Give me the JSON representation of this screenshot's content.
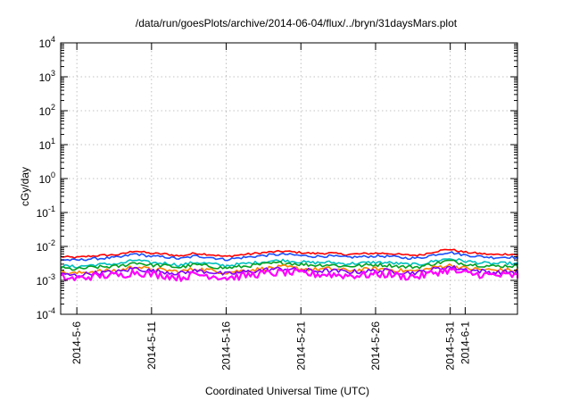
{
  "chart_data": {
    "type": "line",
    "title": "/data/run/goesPlots/archive/2014-06-04/flux/../bryn/31daysMars.plot",
    "xlabel": "Coordinated Universal Time (UTC)",
    "ylabel": "cGy/day",
    "y_scale": "log",
    "ylim": [
      0.0001,
      10000
    ],
    "xlim": [
      "2014-05-04T22:00",
      "2014-06-04T12:00"
    ],
    "grid": true,
    "y_ticks": [
      {
        "value": 0.0001,
        "base": "10",
        "exp": "-4"
      },
      {
        "value": 0.001,
        "base": "10",
        "exp": "-3"
      },
      {
        "value": 0.01,
        "base": "10",
        "exp": "-2"
      },
      {
        "value": 0.1,
        "base": "10",
        "exp": "-1"
      },
      {
        "value": 1,
        "base": "10",
        "exp": "0"
      },
      {
        "value": 10,
        "base": "10",
        "exp": "1"
      },
      {
        "value": 100,
        "base": "10",
        "exp": "2"
      },
      {
        "value": 1000,
        "base": "10",
        "exp": "3"
      },
      {
        "value": 10000,
        "base": "10",
        "exp": "4"
      }
    ],
    "x_ticks": [
      {
        "date": "2014-05-06",
        "label": "2014-5-6"
      },
      {
        "date": "2014-05-11",
        "label": "2014-5-11"
      },
      {
        "date": "2014-05-16",
        "label": "2014-5-16"
      },
      {
        "date": "2014-05-21",
        "label": "2014-5-21"
      },
      {
        "date": "2014-05-26",
        "label": "2014-5-26"
      },
      {
        "date": "2014-05-31",
        "label": "2014-5-31"
      },
      {
        "date": "2014-06-01",
        "label": "2014-6-1"
      }
    ],
    "series": [
      {
        "color": "#ff0000",
        "values": [
          0.005,
          0.0047,
          0.0052,
          0.0055,
          0.0058,
          0.0075,
          0.0062,
          0.006,
          0.0052,
          0.0063,
          0.0058,
          0.005,
          0.0056,
          0.0062,
          0.0068,
          0.0072,
          0.0066,
          0.0062,
          0.0064,
          0.0058,
          0.006,
          0.0063,
          0.0062,
          0.0056,
          0.0055,
          0.007,
          0.0083,
          0.0068,
          0.0062,
          0.0057,
          0.006,
          0.0055
        ]
      },
      {
        "color": "#1a4dff",
        "values": [
          0.0041,
          0.0039,
          0.0043,
          0.0045,
          0.0048,
          0.0061,
          0.0051,
          0.0049,
          0.0043,
          0.0052,
          0.0048,
          0.0041,
          0.0046,
          0.0051,
          0.0056,
          0.0059,
          0.0054,
          0.0051,
          0.0052,
          0.0048,
          0.0049,
          0.0052,
          0.0051,
          0.0046,
          0.0045,
          0.0057,
          0.0068,
          0.0056,
          0.0051,
          0.0047,
          0.0049,
          0.0045
        ]
      },
      {
        "color": "#00bfbf",
        "values": [
          0.0027,
          0.0025,
          0.0028,
          0.003,
          0.0031,
          0.004,
          0.0033,
          0.0032,
          0.0028,
          0.0034,
          0.0031,
          0.0027,
          0.003,
          0.0033,
          0.0037,
          0.0039,
          0.0035,
          0.0033,
          0.0034,
          0.0031,
          0.0032,
          0.0034,
          0.0033,
          0.003,
          0.0029,
          0.0037,
          0.0044,
          0.0037,
          0.0033,
          0.0031,
          0.0032,
          0.0029
        ]
      },
      {
        "color": "#00a020",
        "values": [
          0.0023,
          0.0021,
          0.0024,
          0.0025,
          0.0026,
          0.0034,
          0.0028,
          0.0027,
          0.0024,
          0.0029,
          0.0026,
          0.0023,
          0.0025,
          0.0028,
          0.0031,
          0.0033,
          0.003,
          0.0028,
          0.0029,
          0.0026,
          0.0027,
          0.0029,
          0.0028,
          0.0025,
          0.0025,
          0.0031,
          0.0038,
          0.0031,
          0.0028,
          0.0026,
          0.0027,
          0.0025
        ]
      },
      {
        "color": "#ff8000",
        "values": [
          0.0017,
          0.0016,
          0.0018,
          0.0019,
          0.002,
          0.0026,
          0.0021,
          0.002,
          0.0018,
          0.0022,
          0.002,
          0.0017,
          0.0019,
          0.0021,
          0.0023,
          0.0025,
          0.0022,
          0.0021,
          0.0022,
          0.002,
          0.002,
          0.0022,
          0.0021,
          0.0019,
          0.0019,
          0.0024,
          0.0028,
          0.0023,
          0.0021,
          0.002,
          0.002,
          0.0019
        ]
      },
      {
        "color": "#8000ff",
        "values": [
          0.0015,
          0.0014,
          0.0016,
          0.0017,
          0.0018,
          0.0023,
          0.0019,
          0.0018,
          0.0016,
          0.0019,
          0.0018,
          0.0015,
          0.0017,
          0.0019,
          0.0021,
          0.0022,
          0.002,
          0.0019,
          0.0019,
          0.0018,
          0.0018,
          0.0019,
          0.0019,
          0.0017,
          0.0017,
          0.0021,
          0.0025,
          0.0021,
          0.0019,
          0.0017,
          0.0018,
          0.0017
        ]
      },
      {
        "color": "#ff00ff",
        "values": [
          0.0012,
          0.0011,
          0.0013,
          0.0014,
          0.0014,
          0.0018,
          0.0015,
          0.0014,
          0.0012,
          0.0015,
          0.0014,
          0.0012,
          0.0013,
          0.0015,
          0.0016,
          0.0017,
          0.0016,
          0.0015,
          0.0015,
          0.0014,
          0.0014,
          0.0015,
          0.0015,
          0.0013,
          0.0013,
          0.0017,
          0.002,
          0.0016,
          0.0015,
          0.0014,
          0.0014,
          0.0013
        ]
      }
    ]
  }
}
